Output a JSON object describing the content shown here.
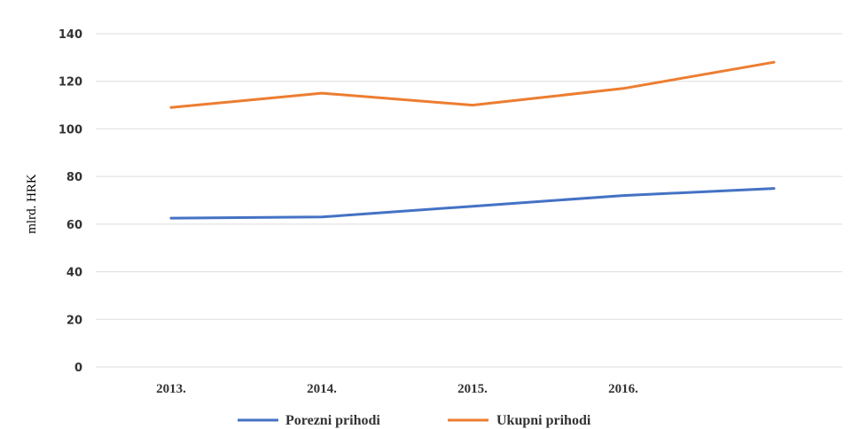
{
  "chart_data": {
    "type": "line",
    "title": "",
    "xlabel": "",
    "ylabel": "mlrd. HRK",
    "categories": [
      "2013.",
      "2014.",
      "2015.",
      "2016.",
      ""
    ],
    "ylim": [
      0,
      140
    ],
    "yticks": [
      0,
      20,
      40,
      60,
      80,
      100,
      120,
      140
    ],
    "grid": true,
    "legend_position": "bottom",
    "series": [
      {
        "name": "Porezni prihodi",
        "values": [
          62.5,
          63,
          67.5,
          72,
          75
        ],
        "color": "#4472C4"
      },
      {
        "name": "Ukupni prihodi",
        "values": [
          109,
          115,
          110,
          117,
          128
        ],
        "color": "#ED7D31"
      }
    ]
  }
}
